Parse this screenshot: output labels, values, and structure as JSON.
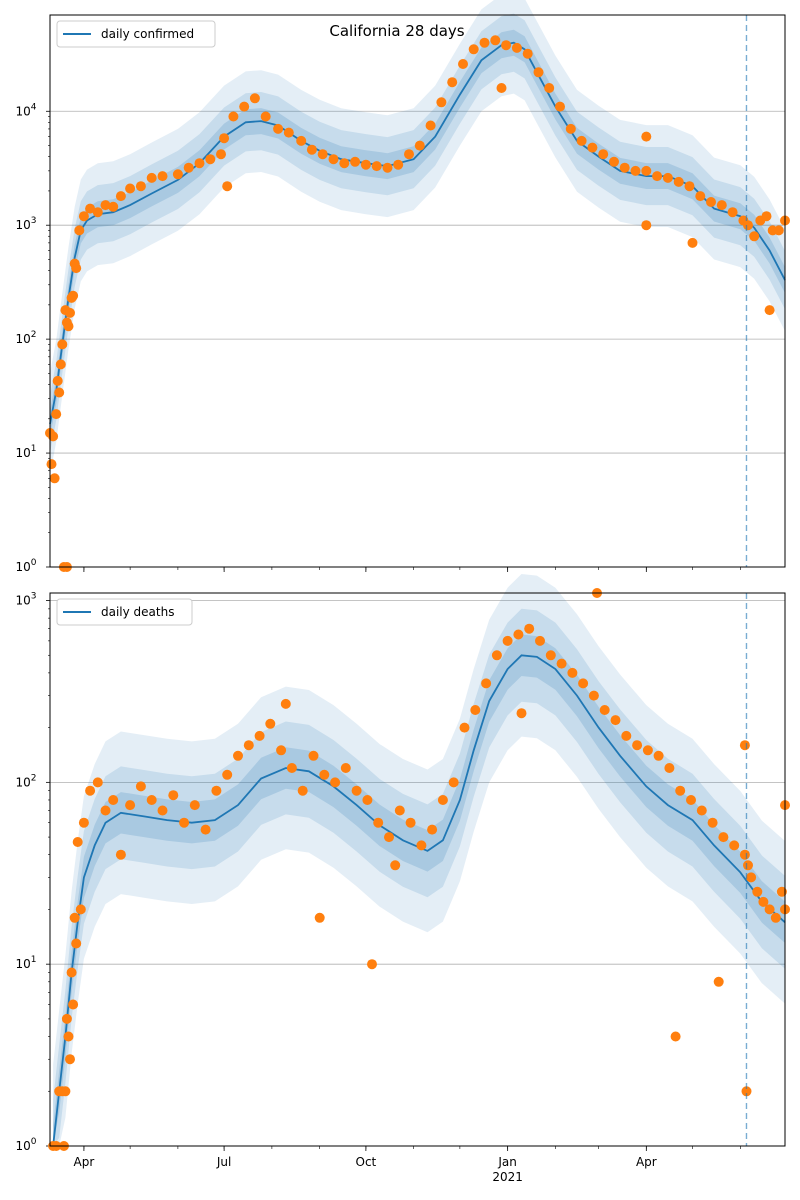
{
  "figure": {
    "title": "California 28 days"
  },
  "chart_data": [
    {
      "type": "scatter",
      "title": "California 28 days",
      "xlabel": "",
      "ylabel": "",
      "yscale": "log",
      "ylim": [
        1,
        70000
      ],
      "xlim": [
        "2020-03-10",
        "2021-06-30"
      ],
      "grid": "horizontal",
      "legend_position": "top-left",
      "x_ticks": [
        {
          "date": "2020-04-01",
          "label": "Apr"
        },
        {
          "date": "2020-07-01",
          "label": "Jul"
        },
        {
          "date": "2020-10-01",
          "label": "Oct"
        },
        {
          "date": "2021-01-01",
          "label": "Jan"
        },
        {
          "date": "2021-04-01",
          "label": "Apr"
        }
      ],
      "x_year_label": {
        "date": "2021-01-01",
        "label": "2021"
      },
      "y_ticks": [
        {
          "value": 1,
          "base": "10",
          "exp": "0"
        },
        {
          "value": 10,
          "base": "10",
          "exp": "1"
        },
        {
          "value": 100,
          "base": "10",
          "exp": "2"
        },
        {
          "value": 1000,
          "base": "10",
          "exp": "3"
        },
        {
          "value": 10000,
          "base": "10",
          "exp": "4"
        }
      ],
      "forecast_start": "2021-06-05",
      "series": [
        {
          "name": "daily confirmed",
          "kind": "line",
          "color": "#1f77b4",
          "x": [
            "2020-03-10",
            "2020-03-14",
            "2020-03-18",
            "2020-03-22",
            "2020-03-26",
            "2020-03-30",
            "2020-04-03",
            "2020-04-10",
            "2020-04-20",
            "2020-05-01",
            "2020-05-15",
            "2020-06-01",
            "2020-06-15",
            "2020-07-01",
            "2020-07-15",
            "2020-07-25",
            "2020-08-05",
            "2020-08-20",
            "2020-09-01",
            "2020-09-15",
            "2020-10-01",
            "2020-10-15",
            "2020-11-01",
            "2020-11-15",
            "2020-12-01",
            "2020-12-15",
            "2020-12-28",
            "2021-01-05",
            "2021-01-12",
            "2021-01-20",
            "2021-02-01",
            "2021-02-15",
            "2021-03-01",
            "2021-03-15",
            "2021-04-01",
            "2021-04-15",
            "2021-05-01",
            "2021-05-15",
            "2021-06-01",
            "2021-06-10",
            "2021-06-20",
            "2021-06-30"
          ],
          "y": [
            18,
            35,
            90,
            230,
            520,
            900,
            1100,
            1250,
            1300,
            1500,
            1900,
            2500,
            3500,
            6000,
            8000,
            8200,
            7500,
            5500,
            4500,
            3800,
            3500,
            3300,
            3800,
            6000,
            14000,
            28000,
            38000,
            40000,
            35000,
            22000,
            11000,
            5500,
            4000,
            3000,
            2700,
            2700,
            2200,
            1400,
            1200,
            950,
            600,
            330
          ]
        },
        {
          "name": "daily confirmed observed",
          "kind": "scatter",
          "color": "#ff7f0e",
          "x": [
            "2020-03-10",
            "2020-03-11",
            "2020-03-12",
            "2020-03-13",
            "2020-03-14",
            "2020-03-15",
            "2020-03-16",
            "2020-03-17",
            "2020-03-18",
            "2020-03-19",
            "2020-03-20",
            "2020-03-21",
            "2020-03-22",
            "2020-03-23",
            "2020-03-24",
            "2020-03-25",
            "2020-03-26",
            "2020-03-27",
            "2020-03-29",
            "2020-04-01",
            "2020-04-05",
            "2020-04-10",
            "2020-04-15",
            "2020-04-20",
            "2020-04-25",
            "2020-05-01",
            "2020-05-08",
            "2020-05-15",
            "2020-05-22",
            "2020-06-01",
            "2020-06-08",
            "2020-06-15",
            "2020-06-22",
            "2020-06-29",
            "2020-07-01",
            "2020-07-07",
            "2020-07-14",
            "2020-07-21",
            "2020-07-28",
            "2020-08-05",
            "2020-08-12",
            "2020-08-20",
            "2020-08-27",
            "2020-09-03",
            "2020-09-10",
            "2020-09-17",
            "2020-09-24",
            "2020-10-01",
            "2020-10-08",
            "2020-10-15",
            "2020-10-22",
            "2020-10-29",
            "2020-11-05",
            "2020-11-12",
            "2020-11-19",
            "2020-11-26",
            "2020-12-03",
            "2020-12-10",
            "2020-12-17",
            "2020-12-24",
            "2020-12-31",
            "2021-01-07",
            "2021-01-14",
            "2021-01-21",
            "2021-01-28",
            "2021-02-04",
            "2021-02-11",
            "2021-02-18",
            "2021-02-25",
            "2021-03-04",
            "2021-03-11",
            "2021-03-18",
            "2021-03-25",
            "2021-04-01",
            "2021-04-08",
            "2021-04-15",
            "2021-04-22",
            "2021-04-29",
            "2021-05-06",
            "2021-05-13",
            "2021-05-20",
            "2021-05-27",
            "2021-06-03",
            "2021-06-06",
            "2021-06-10",
            "2021-06-14",
            "2021-06-18",
            "2021-06-22",
            "2021-06-26",
            "2021-06-30",
            "2020-03-21",
            "2020-07-03",
            "2020-12-28",
            "2021-04-01",
            "2021-04-01",
            "2021-05-01",
            "2021-06-20"
          ],
          "y": [
            15,
            8,
            14,
            6,
            22,
            43,
            34,
            60,
            90,
            1,
            180,
            140,
            130,
            170,
            230,
            240,
            460,
            420,
            900,
            1200,
            1400,
            1300,
            1500,
            1450,
            1800,
            2100,
            2200,
            2600,
            2700,
            2800,
            3200,
            3500,
            3800,
            4200,
            5800,
            9000,
            11000,
            13000,
            9000,
            7000,
            6500,
            5500,
            4600,
            4200,
            3800,
            3500,
            3600,
            3400,
            3300,
            3200,
            3400,
            4200,
            5000,
            7500,
            12000,
            18000,
            26000,
            35000,
            40000,
            42000,
            38000,
            36000,
            32000,
            22000,
            16000,
            11000,
            7000,
            5500,
            4800,
            4200,
            3600,
            3200,
            3000,
            3000,
            2700,
            2600,
            2400,
            2200,
            1800,
            1600,
            1500,
            1300,
            1100,
            1000,
            800,
            1100,
            1200,
            900,
            900,
            1100,
            1,
            2200,
            16000,
            6000,
            1000,
            700,
            180
          ]
        }
      ]
    },
    {
      "type": "scatter",
      "title": "",
      "xlabel": "",
      "ylabel": "",
      "yscale": "log",
      "ylim": [
        1,
        1100
      ],
      "xlim": [
        "2020-03-10",
        "2021-06-30"
      ],
      "grid": "horizontal",
      "legend_position": "top-left",
      "x_ticks": [
        {
          "date": "2020-04-01",
          "label": "Apr"
        },
        {
          "date": "2020-07-01",
          "label": "Jul"
        },
        {
          "date": "2020-10-01",
          "label": "Oct"
        },
        {
          "date": "2021-01-01",
          "label": "Jan"
        },
        {
          "date": "2021-04-01",
          "label": "Apr"
        }
      ],
      "x_year_label": {
        "date": "2021-01-01",
        "label": "2021"
      },
      "y_ticks": [
        {
          "value": 1,
          "base": "10",
          "exp": "0"
        },
        {
          "value": 10,
          "base": "10",
          "exp": "1"
        },
        {
          "value": 100,
          "base": "10",
          "exp": "2"
        },
        {
          "value": 1000,
          "base": "10",
          "exp": "3"
        }
      ],
      "forecast_start": "2021-06-05",
      "series": [
        {
          "name": "daily deaths",
          "kind": "line",
          "color": "#1f77b4",
          "x": [
            "2020-03-12",
            "2020-03-16",
            "2020-03-20",
            "2020-03-24",
            "2020-03-28",
            "2020-04-01",
            "2020-04-08",
            "2020-04-15",
            "2020-04-25",
            "2020-05-10",
            "2020-05-25",
            "2020-06-10",
            "2020-06-25",
            "2020-07-10",
            "2020-07-25",
            "2020-08-10",
            "2020-08-25",
            "2020-09-10",
            "2020-09-25",
            "2020-10-10",
            "2020-10-25",
            "2020-11-10",
            "2020-11-20",
            "2020-12-01",
            "2020-12-10",
            "2020-12-20",
            "2021-01-01",
            "2021-01-10",
            "2021-01-20",
            "2021-02-01",
            "2021-02-15",
            "2021-03-01",
            "2021-03-15",
            "2021-04-01",
            "2021-04-15",
            "2021-05-01",
            "2021-05-15",
            "2021-06-01",
            "2021-06-15",
            "2021-06-30"
          ],
          "y": [
            1,
            2,
            4,
            9,
            17,
            30,
            45,
            60,
            68,
            65,
            62,
            60,
            62,
            75,
            105,
            120,
            115,
            95,
            75,
            58,
            48,
            42,
            48,
            80,
            150,
            280,
            420,
            500,
            490,
            420,
            300,
            200,
            140,
            95,
            75,
            62,
            45,
            32,
            22,
            17
          ]
        },
        {
          "name": "daily deaths observed",
          "kind": "scatter",
          "color": "#ff7f0e",
          "x": [
            "2020-03-12",
            "2020-03-14",
            "2020-03-16",
            "2020-03-18",
            "2020-03-19",
            "2020-03-20",
            "2020-03-21",
            "2020-03-22",
            "2020-03-23",
            "2020-03-24",
            "2020-03-25",
            "2020-03-26",
            "2020-03-27",
            "2020-03-28",
            "2020-03-30",
            "2020-04-01",
            "2020-04-05",
            "2020-04-10",
            "2020-04-15",
            "2020-04-20",
            "2020-04-25",
            "2020-05-01",
            "2020-05-08",
            "2020-05-15",
            "2020-05-22",
            "2020-05-29",
            "2020-06-05",
            "2020-06-12",
            "2020-06-19",
            "2020-06-26",
            "2020-07-03",
            "2020-07-10",
            "2020-07-17",
            "2020-07-24",
            "2020-07-31",
            "2020-08-07",
            "2020-08-14",
            "2020-08-21",
            "2020-08-28",
            "2020-09-04",
            "2020-09-11",
            "2020-09-18",
            "2020-09-25",
            "2020-10-02",
            "2020-10-09",
            "2020-10-16",
            "2020-10-23",
            "2020-10-30",
            "2020-11-06",
            "2020-11-13",
            "2020-11-20",
            "2020-11-27",
            "2020-12-04",
            "2020-12-11",
            "2020-12-18",
            "2020-12-25",
            "2021-01-01",
            "2021-01-08",
            "2021-01-15",
            "2021-01-22",
            "2021-01-29",
            "2021-02-05",
            "2021-02-12",
            "2021-02-19",
            "2021-02-26",
            "2021-03-05",
            "2021-03-12",
            "2021-03-19",
            "2021-03-26",
            "2021-04-02",
            "2021-04-09",
            "2021-04-16",
            "2021-04-23",
            "2021-04-30",
            "2021-05-07",
            "2021-05-14",
            "2021-05-21",
            "2021-05-28",
            "2021-06-04",
            "2021-06-06",
            "2021-06-08",
            "2021-06-12",
            "2021-06-16",
            "2021-06-20",
            "2021-06-24",
            "2021-06-28",
            "2021-06-30",
            "2020-08-10",
            "2020-09-01",
            "2020-10-05",
            "2020-10-20",
            "2021-01-10",
            "2021-02-28",
            "2021-04-20",
            "2021-05-18",
            "2021-06-04",
            "2021-06-05",
            "2021-06-30"
          ],
          "y": [
            1,
            1,
            2,
            2,
            1,
            2,
            5,
            4,
            3,
            9,
            6,
            18,
            13,
            47,
            20,
            60,
            90,
            100,
            70,
            80,
            40,
            75,
            95,
            80,
            70,
            85,
            60,
            75,
            55,
            90,
            110,
            140,
            160,
            180,
            210,
            150,
            120,
            90,
            140,
            110,
            100,
            120,
            90,
            80,
            60,
            50,
            70,
            60,
            45,
            55,
            80,
            100,
            200,
            250,
            350,
            500,
            600,
            650,
            700,
            600,
            500,
            450,
            400,
            350,
            300,
            250,
            220,
            180,
            160,
            150,
            140,
            120,
            90,
            80,
            70,
            60,
            50,
            45,
            40,
            35,
            30,
            25,
            22,
            20,
            18,
            25,
            20,
            270,
            18,
            10,
            35,
            240,
            1100,
            4,
            8,
            160,
            2,
            75
          ]
        }
      ]
    }
  ],
  "legend": {
    "top_label": "daily confirmed",
    "bottom_label": "daily deaths"
  }
}
